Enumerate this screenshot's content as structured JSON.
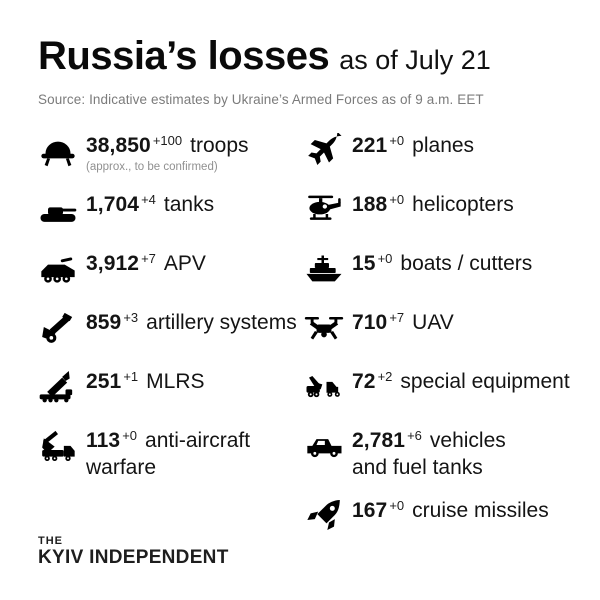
{
  "header": {
    "title": "Russia’s losses",
    "subtitle": "as of July 21",
    "source": "Source: Indicative estimates by Ukraine’s Armed Forces as of 9 a.m. EET"
  },
  "stats": {
    "left": [
      {
        "name": "troops",
        "icon": "helmet-icon",
        "value": "38,850",
        "delta": "+100",
        "label": "troops",
        "note": "(approx., to be confirmed)"
      },
      {
        "name": "tanks",
        "icon": "tank-icon",
        "value": "1,704",
        "delta": "+4",
        "label": "tanks"
      },
      {
        "name": "apv",
        "icon": "apv-icon",
        "value": "3,912",
        "delta": "+7",
        "label": "APV"
      },
      {
        "name": "artillery-systems",
        "icon": "artillery-icon",
        "value": "859",
        "delta": "+3",
        "label": "artillery systems"
      },
      {
        "name": "mlrs",
        "icon": "mlrs-icon",
        "value": "251",
        "delta": "+1",
        "label": "MLRS"
      },
      {
        "name": "anti-aircraft-warfare",
        "icon": "anti-aircraft-icon",
        "value": "113",
        "delta": "+0",
        "label": "anti-aircraft\nwarfare"
      }
    ],
    "right": [
      {
        "name": "planes",
        "icon": "plane-icon",
        "value": "221",
        "delta": "+0",
        "label": "planes"
      },
      {
        "name": "helicopters",
        "icon": "helicopter-icon",
        "value": "188",
        "delta": "+0",
        "label": "helicopters"
      },
      {
        "name": "boats-cutters",
        "icon": "boat-icon",
        "value": "15",
        "delta": "+0",
        "label": "boats / cutters"
      },
      {
        "name": "uav",
        "icon": "drone-icon",
        "value": "710",
        "delta": "+7",
        "label": "UAV"
      },
      {
        "name": "special-equipment",
        "icon": "special-equipment-icon",
        "value": "72",
        "delta": "+2",
        "label": "special equipment"
      },
      {
        "name": "vehicles-fuel-tanks",
        "icon": "vehicle-icon",
        "value": "2,781",
        "delta": "+6",
        "label": "vehicles\nand fuel tanks"
      },
      {
        "name": "cruise-missiles",
        "icon": "missile-icon",
        "value": "167",
        "delta": "+0",
        "label": "cruise missiles"
      }
    ]
  },
  "footer": {
    "logo_top": "THE",
    "logo_bottom": "KYIV INDEPENDENT"
  },
  "colors": {
    "background": "#ffffff",
    "text": "#111111",
    "muted": "#7b7b7b",
    "icon": "#000000"
  }
}
